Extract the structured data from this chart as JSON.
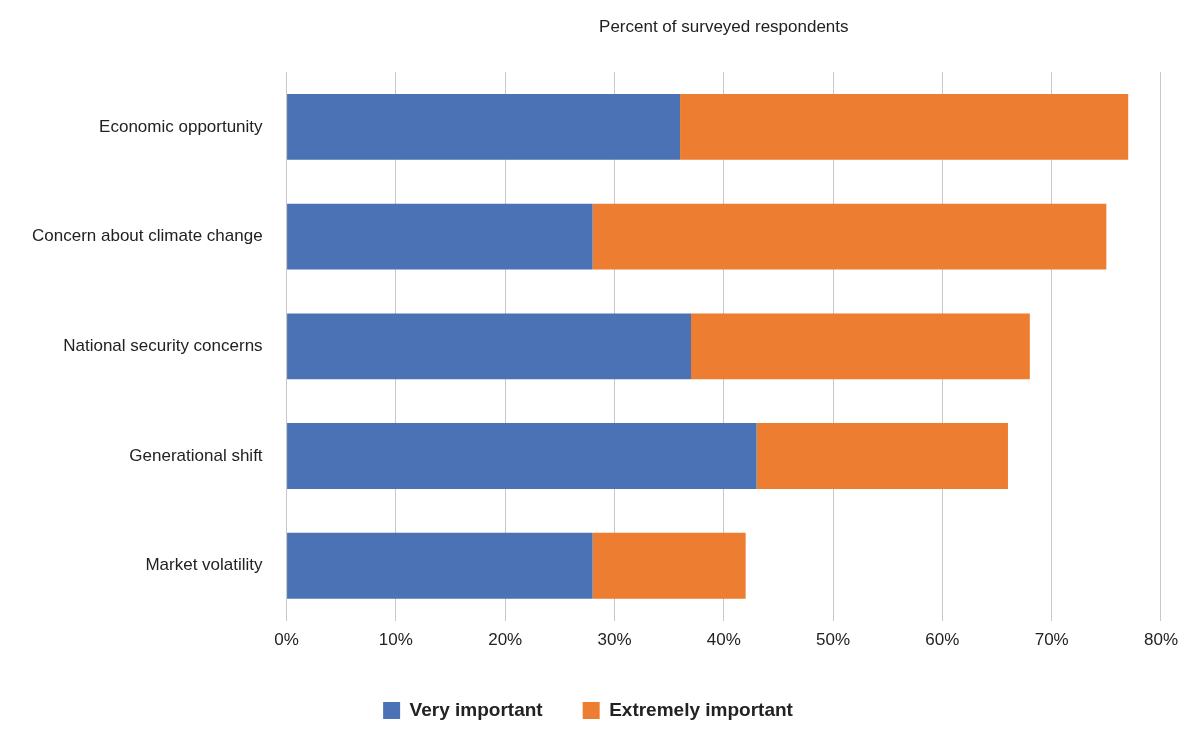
{
  "chart_data": {
    "type": "bar",
    "orientation": "horizontal",
    "stacked": true,
    "xlabel": "Percent of surveyed respondents",
    "categories": [
      "Economic opportunity",
      "Concern about climate change",
      "National security concerns",
      "Generational shift",
      "Market volatility"
    ],
    "series": [
      {
        "name": "Very important",
        "color": "#4a72b5",
        "values": [
          36,
          28,
          37,
          43,
          28
        ]
      },
      {
        "name": "Extremely important",
        "color": "#ed7d31",
        "values": [
          41,
          47,
          31,
          23,
          14
        ]
      }
    ],
    "xlim": [
      0,
      80
    ],
    "xticks": [
      {
        "value": 0,
        "label": "0%"
      },
      {
        "value": 10,
        "label": "10%"
      },
      {
        "value": 20,
        "label": "20%"
      },
      {
        "value": 30,
        "label": "30%"
      },
      {
        "value": 40,
        "label": "40%"
      },
      {
        "value": 50,
        "label": "50%"
      },
      {
        "value": 60,
        "label": "60%"
      },
      {
        "value": 70,
        "label": "70%"
      },
      {
        "value": 80,
        "label": "80%"
      }
    ],
    "grid": "x",
    "legend": "bottom"
  }
}
